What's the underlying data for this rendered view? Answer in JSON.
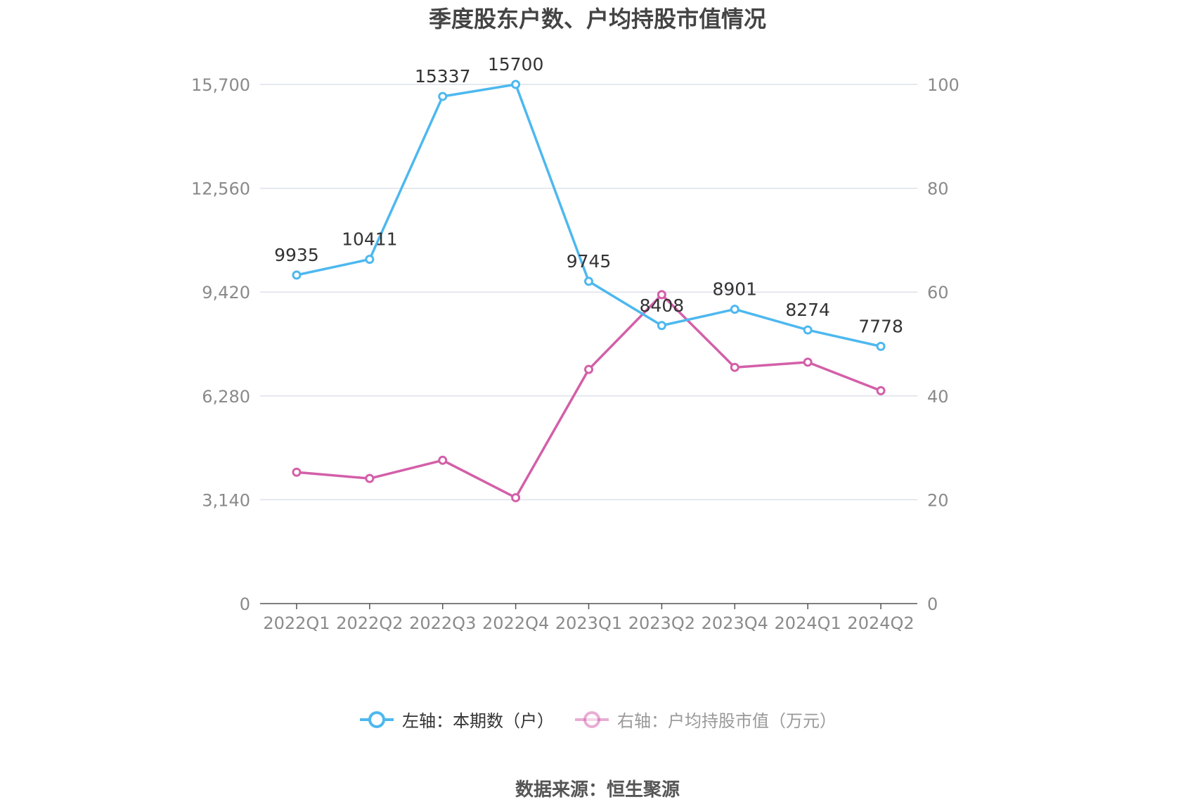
{
  "title": "季度股东户数、户均持股市值情况",
  "source": "数据来源：恒生聚源",
  "colors": {
    "left_series": "#4db8ef",
    "right_series": "#d35fa8",
    "grid": "#dde1ea",
    "axis_text": "#8a8a8a",
    "label_text": "#333333"
  },
  "legend": [
    {
      "label": "左轴：本期数（户）",
      "color": "#4db8ef",
      "text_color": "#333333"
    },
    {
      "label": "右轴：户均持股市值（万元）",
      "color": "#d35fa8",
      "text_color": "#999999"
    }
  ],
  "chart_data": {
    "type": "line",
    "title": "季度股东户数、户均持股市值情况",
    "categories": [
      "2022Q1",
      "2022Q2",
      "2022Q3",
      "2022Q4",
      "2023Q1",
      "2023Q2",
      "2023Q4",
      "2024Q1",
      "2024Q2"
    ],
    "y_left": {
      "ticks": [
        "0",
        "3,140",
        "6,280",
        "9,420",
        "12,560",
        "15,700"
      ],
      "ylim": [
        0,
        15700
      ]
    },
    "y_right": {
      "ticks": [
        "0",
        "20",
        "40",
        "60",
        "80",
        "100"
      ],
      "ylim": [
        0,
        100
      ]
    },
    "series": [
      {
        "name": "左轴：本期数（户）",
        "axis": "left",
        "values": [
          9935,
          10411,
          15337,
          15700,
          9745,
          8408,
          8901,
          8274,
          7778
        ],
        "labels": [
          "9935",
          "10411",
          "15337",
          "15700",
          "9745",
          "8408",
          "8901",
          "8274",
          "7778"
        ]
      },
      {
        "name": "右轴：户均持股市值（万元）",
        "axis": "right",
        "values": [
          25.3,
          24.1,
          27.6,
          20.4,
          45.1,
          59.5,
          45.5,
          46.5,
          41.0
        ]
      }
    ],
    "grid": true,
    "legend_position": "bottom"
  }
}
